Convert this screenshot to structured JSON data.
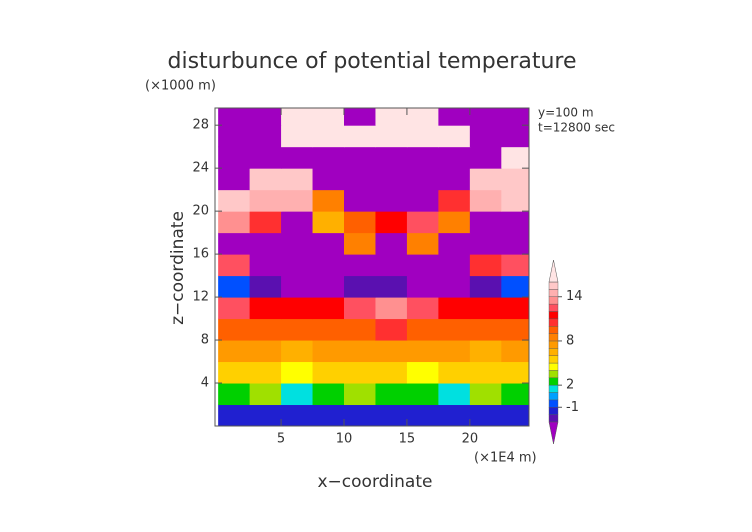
{
  "chart_data": {
    "type": "heatmap",
    "title": "disturbunce of potential temperature",
    "y_unit": "(×1000 m)",
    "x_unit": "(×1E4 m)",
    "annotations": [
      "y=100 m",
      "t=12800 sec"
    ],
    "xlabel": "x−coordinate",
    "ylabel": "z−coordinate",
    "xlim": [
      -0.25,
      24.7
    ],
    "ylim": [
      0,
      29.6
    ],
    "xticks": [
      5,
      10,
      15,
      20
    ],
    "yticks": [
      4,
      8,
      12,
      16,
      20,
      24,
      28
    ],
    "x": [
      1.25,
      3.75,
      6.25,
      8.75,
      11.25,
      13.75,
      16.25,
      18.75,
      21.25,
      23.75
    ],
    "y": [
      1,
      3,
      5,
      7,
      9,
      11,
      13,
      15,
      17,
      19,
      21,
      23,
      25,
      27,
      29
    ],
    "values": [
      [
        -2,
        -1.5,
        -1.5,
        -2,
        -2,
        -1.5,
        -2,
        -2,
        -1.5,
        -2
      ],
      [
        2,
        3,
        1,
        2,
        3,
        2,
        2,
        1,
        3,
        2
      ],
      [
        5,
        5,
        4.5,
        5,
        5,
        5,
        4.5,
        5,
        5,
        5
      ],
      [
        7,
        7,
        6.5,
        7,
        7,
        7,
        7,
        7,
        6.5,
        7
      ],
      [
        9,
        9,
        9.5,
        9.5,
        9.5,
        10,
        9.5,
        9,
        9,
        9
      ],
      [
        12,
        11,
        11,
        11.5,
        12.5,
        13,
        12,
        11,
        11.5,
        11
      ],
      [
        -1,
        -3,
        -4,
        -4,
        -3,
        -3,
        -4,
        -4,
        -3,
        -1
      ],
      [
        12,
        -5,
        -5,
        -5,
        -5,
        -5,
        -5,
        -5,
        10,
        12
      ],
      [
        -5,
        -5,
        -5,
        -5,
        8,
        -5,
        8,
        -5,
        -5,
        -5
      ],
      [
        13,
        10,
        -5,
        6,
        9,
        11,
        12,
        8,
        -5,
        -5
      ],
      [
        15,
        14,
        14,
        8,
        -5,
        -5,
        -5,
        10,
        14,
        15
      ],
      [
        -5,
        15,
        15,
        -5,
        -5,
        -5,
        -5,
        -5,
        15,
        15
      ],
      [
        -5,
        -5,
        -5,
        -5,
        -5,
        -5,
        -5,
        -5,
        -5,
        16
      ],
      [
        -5,
        -5,
        16,
        16,
        16,
        16,
        16,
        16,
        -5,
        -5
      ],
      [
        -5,
        -5,
        16,
        16,
        -5,
        16,
        16,
        -5,
        -5,
        -5
      ]
    ],
    "colorbar": {
      "levels": [
        -3,
        -2,
        -1,
        0,
        1,
        2,
        3,
        4,
        5,
        6,
        7,
        8,
        9,
        10,
        11,
        12,
        13,
        14,
        15,
        16
      ],
      "colors": [
        "#a000c0",
        "#5a10b0",
        "#2020d0",
        "#0050ff",
        "#00a0ff",
        "#00e0e0",
        "#00d000",
        "#a0e000",
        "#ffff00",
        "#ffd000",
        "#ffb000",
        "#ff9a00",
        "#ff8000",
        "#ff6000",
        "#ff3030",
        "#ff0000",
        "#ff5060",
        "#ff9090",
        "#ffb0b0",
        "#ffc8c8",
        "#ffe4e4"
      ],
      "ticks": [
        -1,
        2,
        8,
        14
      ]
    }
  }
}
